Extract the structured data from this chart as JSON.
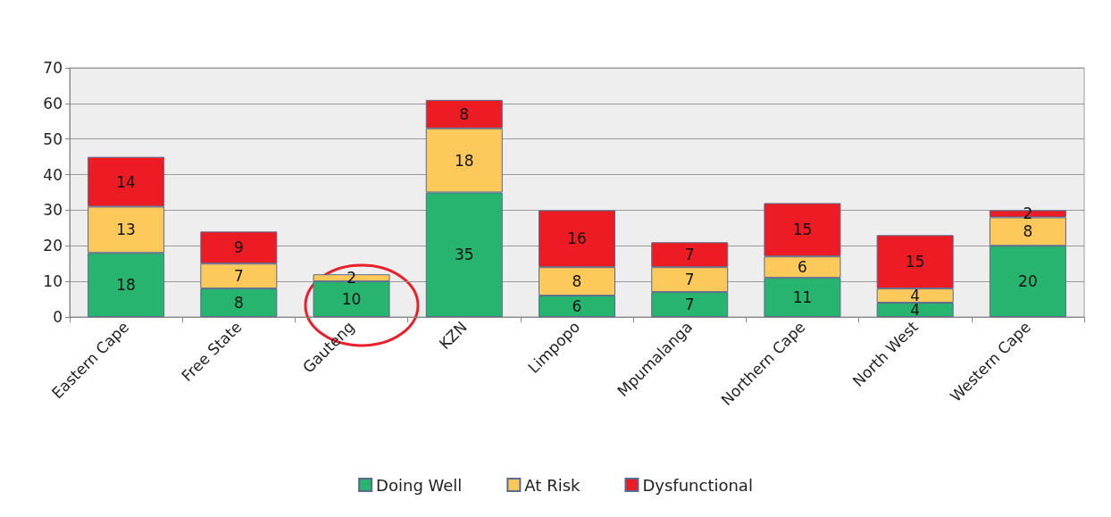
{
  "chart_data": {
    "type": "bar",
    "stacked": true,
    "categories": [
      "Eastern Cape",
      "Free State",
      "Gauteng",
      "KZN",
      "Limpopo",
      "Mpumalanga",
      "Northern Cape",
      "North West",
      "Western Cape"
    ],
    "series": [
      {
        "name": "Doing Well",
        "color": "#27b46e",
        "values": [
          18,
          8,
          10,
          35,
          6,
          7,
          11,
          4,
          20
        ]
      },
      {
        "name": "At Risk",
        "color": "#fdc95a",
        "values": [
          13,
          7,
          2,
          18,
          8,
          7,
          6,
          4,
          8
        ]
      },
      {
        "name": "Dysfunctional",
        "color": "#ed1c24",
        "values": [
          14,
          9,
          null,
          8,
          16,
          7,
          15,
          15,
          2
        ]
      }
    ],
    "ylim": [
      0,
      70
    ],
    "yticks": [
      0,
      10,
      20,
      30,
      40,
      50,
      60,
      70
    ],
    "grid": "y",
    "legend": "bottom",
    "data_labels": true
  }
}
